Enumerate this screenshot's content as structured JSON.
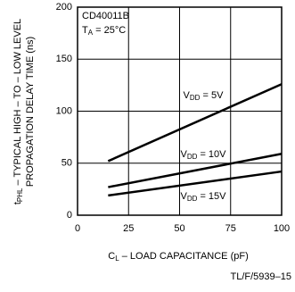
{
  "chart_data": {
    "type": "line",
    "annotations": [
      "CD40011B",
      [
        "T",
        "A",
        " = 25°C"
      ]
    ],
    "y_label": [
      [
        "t",
        "PHL",
        " – TYPICAL HIGH – TO – LOW LEVEL"
      ],
      "PROPAGATION DELAY TIME (ns)"
    ],
    "x_label": [
      "C",
      "L",
      " – LOAD CAPACITANCE (pF)"
    ],
    "footnote": "TL/F/5939–15",
    "x": [
      15,
      100
    ],
    "series": [
      {
        "name": [
          "V",
          "DD",
          " = 5V"
        ],
        "color": "#000000",
        "values": [
          52,
          126
        ]
      },
      {
        "name": [
          "V",
          "DD",
          " = 10V"
        ],
        "color": "#000000",
        "values": [
          27,
          59
        ]
      },
      {
        "name": [
          "V",
          "DD",
          " = 15V"
        ],
        "color": "#000000",
        "values": [
          19,
          42
        ]
      }
    ],
    "xlim": [
      0,
      100
    ],
    "xticks": [
      0,
      25,
      50,
      75,
      100
    ],
    "ylim": [
      0,
      200
    ],
    "yticks": [
      0,
      50,
      100,
      150,
      200
    ],
    "grid": true
  }
}
